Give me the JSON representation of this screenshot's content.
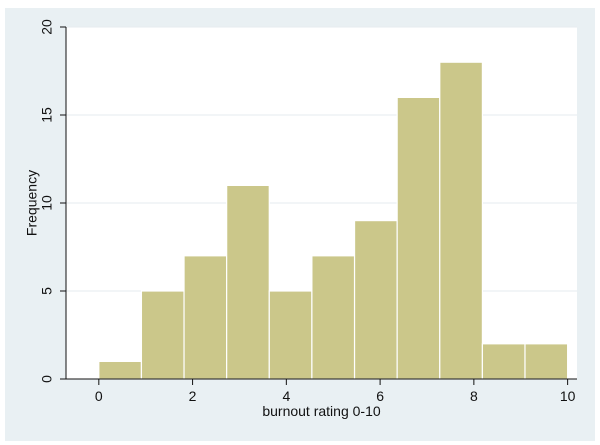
{
  "chart_data": {
    "type": "bar",
    "subtype": "histogram",
    "xlabel": "burnout rating 0-10",
    "ylabel": "Frequency",
    "xlim": [
      -0.7,
      10.2
    ],
    "ylim": [
      0,
      20
    ],
    "x_ticks": [
      0,
      2,
      4,
      6,
      8,
      10
    ],
    "y_ticks": [
      0,
      5,
      10,
      15,
      20
    ],
    "bins": [
      {
        "start": 0.0,
        "end": 0.909,
        "value": 1
      },
      {
        "start": 0.909,
        "end": 1.818,
        "value": 5
      },
      {
        "start": 1.818,
        "end": 2.727,
        "value": 7
      },
      {
        "start": 2.727,
        "end": 3.636,
        "value": 11
      },
      {
        "start": 3.636,
        "end": 4.545,
        "value": 5
      },
      {
        "start": 4.545,
        "end": 5.455,
        "value": 7
      },
      {
        "start": 5.455,
        "end": 6.364,
        "value": 9
      },
      {
        "start": 6.364,
        "end": 7.273,
        "value": 16
      },
      {
        "start": 7.273,
        "end": 8.182,
        "value": 18
      },
      {
        "start": 8.182,
        "end": 9.091,
        "value": 2
      },
      {
        "start": 9.091,
        "end": 10.0,
        "value": 2
      }
    ],
    "grid": true,
    "colors": {
      "bar_fill": "#cbc78a",
      "bar_edge": "#ffffff",
      "grid": "#e6ebef",
      "axis": "#111111",
      "outer_bg": "#e9f0f3",
      "plot_bg": "#ffffff"
    }
  }
}
